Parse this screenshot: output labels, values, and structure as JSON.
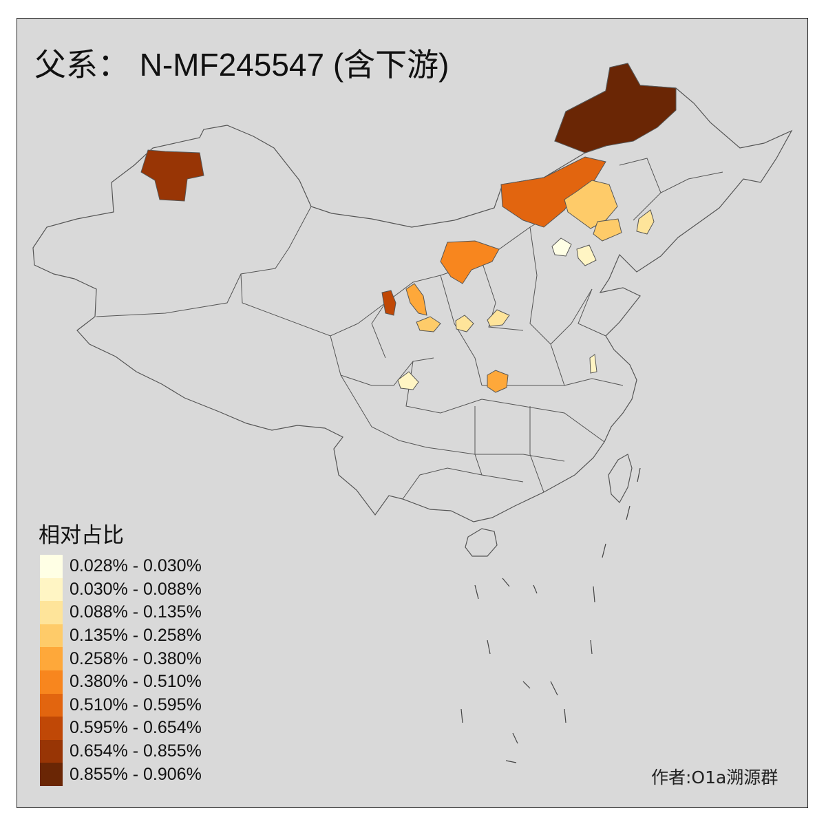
{
  "title": {
    "label": "父系：",
    "haplogroup": "N-MF245547 (含下游)"
  },
  "legend": {
    "title": "相对占比",
    "bins": [
      {
        "label": "0.028% - 0.030%",
        "color": "#ffffe5"
      },
      {
        "label": "0.030% - 0.088%",
        "color": "#fff5c4"
      },
      {
        "label": "0.088% - 0.135%",
        "color": "#fee49a"
      },
      {
        "label": "0.135% - 0.258%",
        "color": "#fecb69"
      },
      {
        "label": "0.258% - 0.380%",
        "color": "#fea83a"
      },
      {
        "label": "0.380% - 0.510%",
        "color": "#f8861e"
      },
      {
        "label": "0.510% - 0.595%",
        "color": "#e2650f"
      },
      {
        "label": "0.595% - 0.654%",
        "color": "#c04806"
      },
      {
        "label": "0.654% - 0.855%",
        "color": "#983505"
      },
      {
        "label": "0.855% - 0.906%",
        "color": "#6a2605"
      }
    ]
  },
  "credit": "作者:O1a溯源群",
  "colors": {
    "background": "#d9d9d9",
    "no_data": "#d9d9d9",
    "border": "#555555"
  },
  "regions": [
    {
      "id": "hulunbuir",
      "bin": 9
    },
    {
      "id": "ili-tacheng",
      "bin": 8
    },
    {
      "id": "xinganmeng-area",
      "bin": 6
    },
    {
      "id": "qiqihar-area",
      "bin": 3
    },
    {
      "id": "jilin-west",
      "bin": 3
    },
    {
      "id": "changchun-area",
      "bin": 2
    },
    {
      "id": "hohhot-baotou",
      "bin": 5
    },
    {
      "id": "yinchuan-area",
      "bin": 7
    },
    {
      "id": "yulin-area",
      "bin": 4
    },
    {
      "id": "xian-area",
      "bin": 3
    },
    {
      "id": "shanxi-south",
      "bin": 2
    },
    {
      "id": "henan-north",
      "bin": 2
    },
    {
      "id": "beijing",
      "bin": 0
    },
    {
      "id": "tianjin-area",
      "bin": 1
    },
    {
      "id": "anhui-central",
      "bin": 1
    },
    {
      "id": "chengdu-area",
      "bin": 1
    },
    {
      "id": "nanyang-area",
      "bin": 4
    }
  ]
}
